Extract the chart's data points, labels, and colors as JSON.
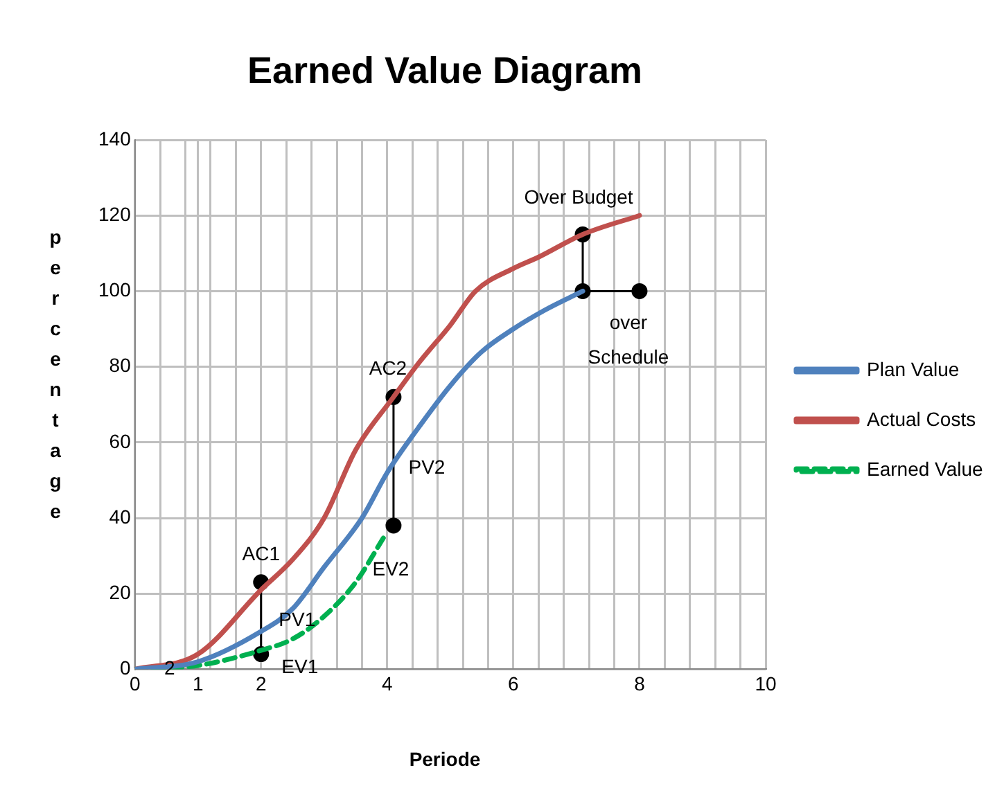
{
  "chart_data": {
    "type": "line",
    "title": "Earned Value Diagram",
    "xlabel": "Periode",
    "ylabel": "percentage",
    "xlim": [
      0,
      10
    ],
    "ylim": [
      0,
      140
    ],
    "xticks": [
      0,
      {
        "value": 0.4,
        "label": null
      },
      {
        "value": 0.8,
        "label": null
      },
      1,
      {
        "value": 1.2,
        "label": null
      },
      {
        "value": 1.6,
        "label": null
      },
      2,
      {
        "value": 2.4,
        "label": null
      },
      {
        "value": 2.8,
        "label": null
      },
      {
        "value": 3.2,
        "label": null
      },
      {
        "value": 3.6,
        "label": null
      },
      4,
      {
        "value": 4.4,
        "label": null
      },
      {
        "value": 4.8,
        "label": null
      },
      {
        "value": 5.2,
        "label": null
      },
      {
        "value": 5.6,
        "label": null
      },
      6,
      {
        "value": 6.4,
        "label": null
      },
      {
        "value": 6.8,
        "label": null
      },
      {
        "value": 7.2,
        "label": null
      },
      {
        "value": 7.6,
        "label": null
      },
      8,
      {
        "value": 8.4,
        "label": null
      },
      {
        "value": 8.8,
        "label": null
      },
      {
        "value": 9.2,
        "label": null
      },
      {
        "value": 9.6,
        "label": null
      },
      10
    ],
    "yticks": [
      0,
      20,
      40,
      60,
      80,
      100,
      120,
      140
    ],
    "grid": true,
    "legend": "right",
    "marker": "none",
    "series": [
      {
        "name": "Plan Value",
        "color": "#4f81bd",
        "x": [
          0,
          1,
          2,
          2.5,
          3,
          3.6,
          4,
          4.5,
          5,
          5.5,
          6,
          6.5,
          7.1
        ],
        "values": [
          0,
          2,
          10,
          16,
          27,
          40,
          52,
          64,
          75,
          84,
          90,
          95,
          100
        ]
      },
      {
        "name": "Actual Costs",
        "color": "#c0504d",
        "x": [
          0,
          1,
          2,
          2.5,
          3,
          3.5,
          4.1,
          4.5,
          5,
          5.4,
          6,
          6.4,
          7.1,
          8
        ],
        "values": [
          0,
          4,
          21,
          29,
          40,
          58,
          72,
          81,
          91,
          100,
          106,
          109,
          115,
          120
        ]
      },
      {
        "name": "Earned Value",
        "color": "#00b050",
        "line_style": "dashed",
        "x": [
          0,
          1,
          2,
          2.5,
          3,
          3.5,
          3.95
        ],
        "values": [
          0,
          1,
          5,
          8,
          14,
          23,
          35
        ]
      },
      {
        "color": "#000000",
        "marker": "circle",
        "x": [
          2,
          2
        ],
        "values": [
          23,
          4
        ]
      },
      {
        "color": "#000000",
        "marker": "circle",
        "x": [
          4.1,
          4.1
        ],
        "values": [
          72,
          38
        ]
      },
      {
        "color": "#000000",
        "marker": "circle",
        "x": [
          7.1,
          7.1,
          8
        ],
        "values": [
          115,
          100,
          100
        ]
      }
    ],
    "annotations": [
      {
        "text": "AC1",
        "x": 2,
        "y": 23
      },
      {
        "text": "PV1",
        "x": 2,
        "y": 10
      },
      {
        "text": "EV1",
        "x": 2,
        "y": 4
      },
      {
        "text": "AC2",
        "x": 4.1,
        "y": 72
      },
      {
        "text": "PV2",
        "x": 4.1,
        "y": 55
      },
      {
        "text": "EV2",
        "x": 4.1,
        "y": 38
      },
      {
        "text": "Over Budget",
        "x": 7.1,
        "y": 115
      },
      {
        "text": "over Schedule",
        "x": 8,
        "y": 100
      },
      {
        "text": "2",
        "x": 0.55,
        "y": 0
      }
    ]
  }
}
